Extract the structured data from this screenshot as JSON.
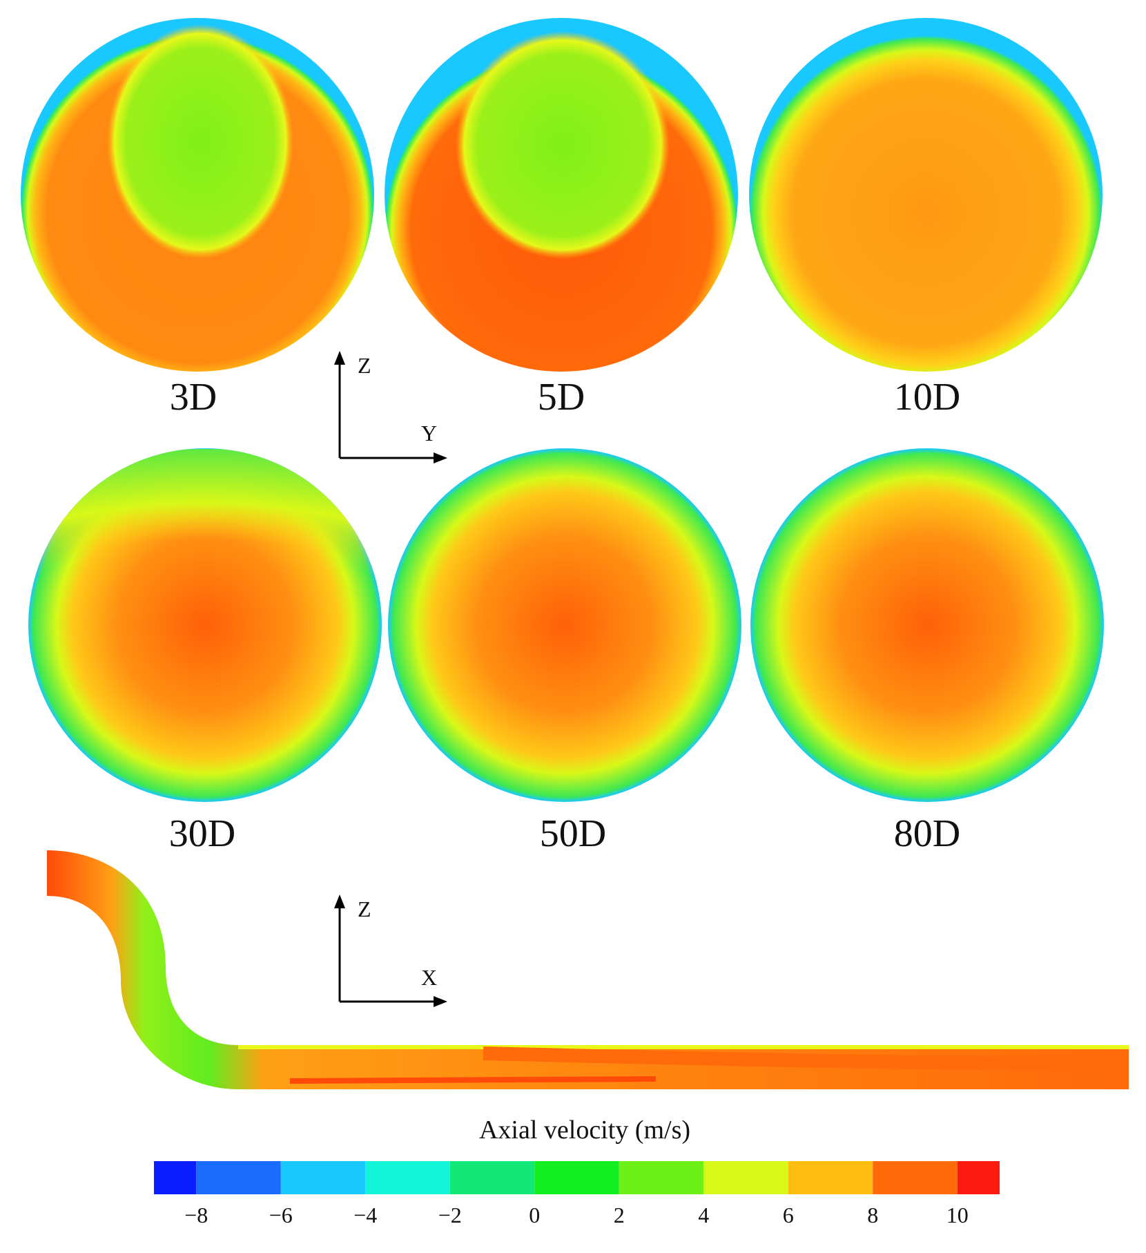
{
  "panels": [
    {
      "label": "3D"
    },
    {
      "label": "5D"
    },
    {
      "label": "10D"
    },
    {
      "label": "30D"
    },
    {
      "label": "50D"
    },
    {
      "label": "80D"
    }
  ],
  "axes": [
    {
      "vertical": "Z",
      "horizontal": "Y"
    },
    {
      "vertical": "Z",
      "horizontal": "X"
    }
  ],
  "colorbar": {
    "title": "Axial velocity (m/s)",
    "levels": [
      -9,
      -8,
      -6,
      -4,
      -2,
      0,
      2,
      4,
      6,
      8,
      10,
      11
    ],
    "colors": [
      "#0a1eff",
      "#1a6cff",
      "#18c8ff",
      "#12f5d8",
      "#12e878",
      "#12ee20",
      "#6cf016",
      "#d8f818",
      "#ffbe10",
      "#ff6a08",
      "#ff1a10"
    ],
    "ticks": [
      {
        "value": -8,
        "label": "−8"
      },
      {
        "value": -6,
        "label": "−6"
      },
      {
        "value": -4,
        "label": "−4"
      },
      {
        "value": -2,
        "label": "−2"
      },
      0,
      2,
      4,
      6,
      8,
      10
    ]
  }
}
